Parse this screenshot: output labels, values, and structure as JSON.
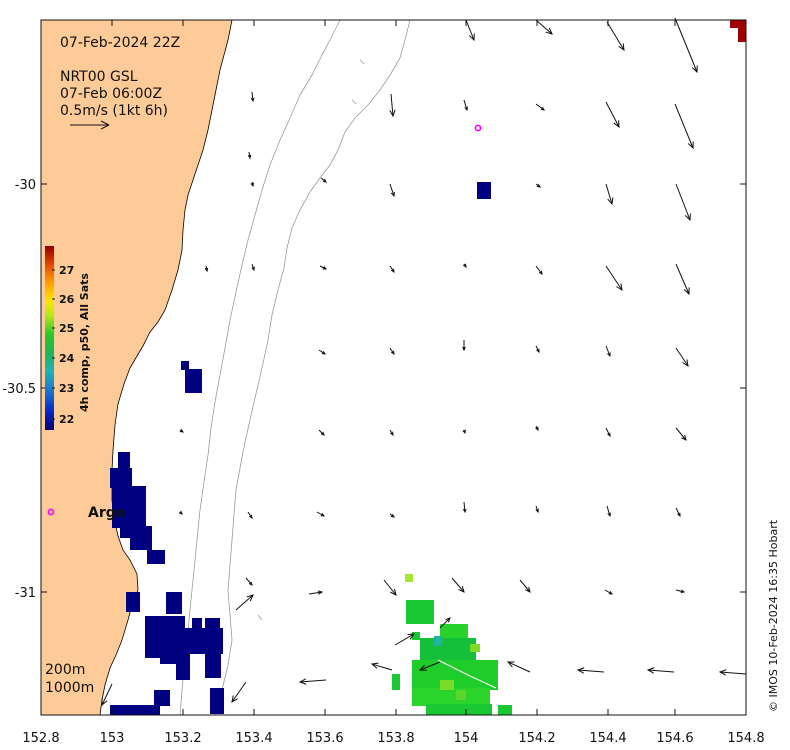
{
  "map": {
    "date_label": "07-Feb-2024 22Z",
    "product_label": "NRT00 GSL",
    "product_time": "07-Feb 06:00Z",
    "scale_label": "0.5m/s (1kt 6h)",
    "argo_label": "Argo",
    "depth_labels": [
      "200m",
      "1000m"
    ],
    "credit": "© IMOS 10-Feb-2024 16:35 Hobart",
    "x_ticks": [
      "152.8",
      "153",
      "153.2",
      "153.4",
      "153.6",
      "153.8",
      "154",
      "154.2",
      "154.4",
      "154.6",
      "154.8"
    ],
    "y_ticks": [
      "-30",
      "-30.5",
      "-31"
    ],
    "colorbar": {
      "title": "4h comp, p50, All Sats",
      "ticks": [
        "27",
        "26",
        "25",
        "24",
        "23",
        "22"
      ]
    },
    "colors": {
      "land": "#FDCB98",
      "deep_blue": "#000080",
      "green": "#19C832",
      "magenta": "#FF00FF"
    }
  }
}
